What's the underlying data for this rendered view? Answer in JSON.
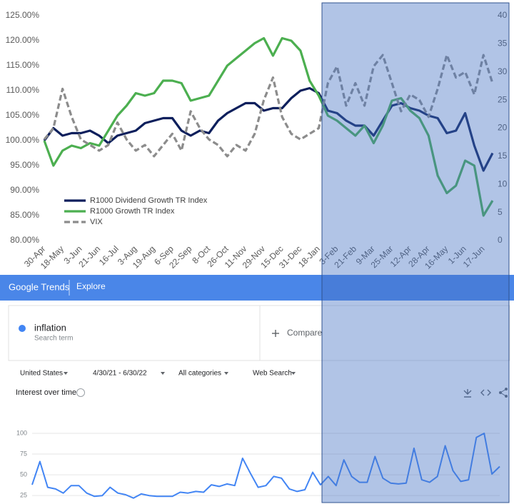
{
  "chart_data": [
    {
      "type": "line",
      "categories": [
        "30-Apr",
        null,
        "18-May",
        null,
        "3-Jun",
        null,
        "21-Jun",
        null,
        "16-Jul",
        null,
        "3-Aug",
        null,
        "19-Aug",
        null,
        "6-Sep",
        null,
        "22-Sep",
        null,
        "8-Oct",
        null,
        "26-Oct",
        null,
        "11-Nov",
        null,
        "29-Nov",
        null,
        "15-Dec",
        null,
        "31-Dec",
        null,
        "18-Jan",
        null,
        "3-Feb",
        null,
        "21-Feb",
        null,
        "9-Mar",
        null,
        "25-Mar",
        null,
        "12-Apr",
        null,
        "28-Apr",
        null,
        "16-May",
        null,
        "1-Jun",
        null,
        "17-Jun",
        null
      ],
      "series": [
        {
          "name": "R1000 Dividend Growth TR Index",
          "color": "#0d1f5c",
          "values": [
            100,
            102.5,
            101,
            101.5,
            101.5,
            102,
            101,
            99.5,
            101,
            101.5,
            102,
            103.5,
            104,
            104.5,
            104.5,
            102,
            101,
            102,
            101.5,
            104,
            105.5,
            106.5,
            107.5,
            107.5,
            106,
            106.5,
            106.5,
            108.5,
            110,
            110.5,
            109.5,
            106,
            105.5,
            104,
            103,
            103,
            101,
            104,
            107,
            107.5,
            106.5,
            106,
            105,
            104.5,
            101.5,
            102,
            105.5,
            99,
            94,
            97.5
          ]
        },
        {
          "name": "R1000 Growth TR Index",
          "color": "#4caf50",
          "values": [
            100,
            95,
            98,
            99,
            98.5,
            99.5,
            99,
            102,
            105,
            107,
            109.5,
            109,
            109.5,
            112,
            112,
            111.5,
            108,
            108.5,
            109,
            112,
            115,
            116.5,
            118,
            119.5,
            120.5,
            117,
            120.5,
            120,
            118,
            112,
            109,
            105,
            104,
            102.5,
            101,
            103,
            99.5,
            103,
            108,
            108.5,
            106,
            104.5,
            101,
            93,
            89.5,
            91,
            96,
            95,
            85,
            88
          ]
        },
        {
          "name": "VIX",
          "color": "#8c8c8c",
          "linestyle": "dashed",
          "axis": "y2",
          "values": [
            18,
            20,
            27,
            22,
            18,
            17,
            16,
            17,
            21,
            18,
            16,
            17,
            15,
            17,
            19,
            16,
            23,
            20,
            18,
            17,
            15,
            17,
            16,
            19,
            25,
            29,
            22,
            19,
            18,
            19,
            20,
            28,
            31,
            24,
            28,
            24,
            31,
            33,
            28,
            23,
            26,
            25,
            22,
            27,
            33,
            29,
            30,
            26,
            33,
            28
          ]
        }
      ],
      "ylim": [
        80,
        125
      ],
      "yticks": [
        {
          "value": 80,
          "label": "80.00%"
        },
        {
          "value": 85,
          "label": "85.00%"
        },
        {
          "value": 90,
          "label": "90.00%"
        },
        {
          "value": 95,
          "label": "95.00%"
        },
        {
          "value": 100,
          "label": "100.00%"
        },
        {
          "value": 105,
          "label": "105.00%"
        },
        {
          "value": 110,
          "label": "110.00%"
        },
        {
          "value": 115,
          "label": "115.00%"
        },
        {
          "value": 120,
          "label": "120.00%"
        },
        {
          "value": 125,
          "label": "125.00%"
        }
      ],
      "y2lim": [
        0,
        40
      ],
      "y2ticks": [
        0,
        5,
        10,
        15,
        20,
        25,
        30,
        35,
        40
      ],
      "legend": "lower left"
    },
    {
      "type": "line",
      "categories": [
        null,
        null,
        null,
        null,
        null,
        null,
        null,
        null,
        null,
        null,
        null,
        null,
        null,
        null,
        null,
        null,
        null,
        null,
        null,
        null,
        null,
        null,
        null,
        null,
        null,
        null,
        null,
        null,
        null,
        null,
        null,
        null,
        null,
        null,
        null,
        null,
        null,
        null,
        null,
        null,
        null,
        null,
        null,
        null,
        null,
        null,
        null,
        null,
        null,
        null,
        null,
        null,
        null,
        null,
        null,
        null,
        null,
        null,
        null,
        null,
        null
      ],
      "series": [
        {
          "name": "inflation",
          "color": "#4285f4",
          "values": [
            38,
            66,
            35,
            33,
            28,
            37,
            37,
            28,
            24,
            25,
            35,
            28,
            26,
            22,
            27,
            25,
            24,
            24,
            24,
            29,
            28,
            30,
            29,
            38,
            36,
            39,
            37,
            70,
            52,
            35,
            37,
            48,
            46,
            33,
            30,
            32,
            53,
            38,
            48,
            37,
            68,
            48,
            41,
            41,
            72,
            46,
            40,
            39,
            40,
            82,
            44,
            41,
            48,
            85,
            55,
            42,
            44,
            95,
            100,
            51,
            60
          ]
        }
      ],
      "ylim": [
        20,
        106
      ],
      "yticks": [
        25,
        50,
        75,
        100
      ],
      "grid": true
    }
  ],
  "trends_ui": {
    "brand": "Google Trends",
    "nav": "Explore",
    "term": "inflation",
    "term_type": "Search term",
    "compare": "Compare",
    "filters": [
      "United States",
      "4/30/21 - 6/30/22",
      "All categories",
      "Web Search"
    ],
    "section_title": "Interest over time"
  }
}
